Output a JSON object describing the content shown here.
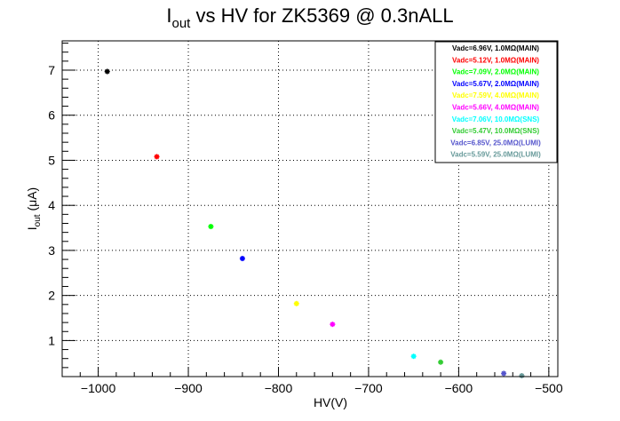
{
  "chart_data": {
    "type": "scatter",
    "title_base": "I",
    "title_sub": "out",
    "title_rest": " vs HV for ZK5369 @ 0.3nALL",
    "xlabel": "HV(V)",
    "ylabel_base": "I",
    "ylabel_sub": "out",
    "ylabel_rest": " (μA)",
    "xlim": [
      -1040,
      -490
    ],
    "ylim": [
      0.2,
      7.65
    ],
    "xticks": [
      -1000,
      -900,
      -800,
      -700,
      -600,
      -500
    ],
    "xtick_labels": [
      "−1000",
      "−900",
      "−800",
      "−700",
      "−600",
      "−500"
    ],
    "yticks": [
      1,
      2,
      3,
      4,
      5,
      6,
      7
    ],
    "ytick_labels": [
      "1",
      "2",
      "3",
      "4",
      "5",
      "6",
      "7"
    ],
    "grid": true,
    "legend_position": "top-right",
    "series": [
      {
        "name": "Vadc=6.96V, 1.0MΩ(MAIN)",
        "color": "#000000",
        "x": [
          -990
        ],
        "y": [
          6.97
        ]
      },
      {
        "name": "Vadc=5.12V, 1.0MΩ(MAIN)",
        "color": "#ff0000",
        "x": [
          -935
        ],
        "y": [
          5.08
        ]
      },
      {
        "name": "Vadc=7.09V, 2.0MΩ(MAIN)",
        "color": "#00ff00",
        "x": [
          -875
        ],
        "y": [
          3.53
        ]
      },
      {
        "name": "Vadc=5.67V, 2.0MΩ(MAIN)",
        "color": "#0000ff",
        "x": [
          -840
        ],
        "y": [
          2.82
        ]
      },
      {
        "name": "Vadc=7.59V, 4.0MΩ(MAIN)",
        "color": "#ffff00",
        "x": [
          -780
        ],
        "y": [
          1.82
        ]
      },
      {
        "name": "Vadc=5.66V, 4.0MΩ(MAIN)",
        "color": "#ff00ff",
        "x": [
          -740
        ],
        "y": [
          1.36
        ]
      },
      {
        "name": "Vadc=7.06V, 10.0MΩ(SNS)",
        "color": "#00ffff",
        "x": [
          -650
        ],
        "y": [
          0.65
        ]
      },
      {
        "name": "Vadc=5.47V, 10.0MΩ(SNS)",
        "color": "#33cc33",
        "x": [
          -620
        ],
        "y": [
          0.52
        ]
      },
      {
        "name": "Vadc=6.85V, 25.0MΩ(LUMI)",
        "color": "#5555cc",
        "x": [
          -550
        ],
        "y": [
          0.27
        ]
      },
      {
        "name": "Vadc=5.59V, 25.0MΩ(LUMI)",
        "color": "#669999",
        "x": [
          -530
        ],
        "y": [
          0.22
        ]
      }
    ]
  }
}
